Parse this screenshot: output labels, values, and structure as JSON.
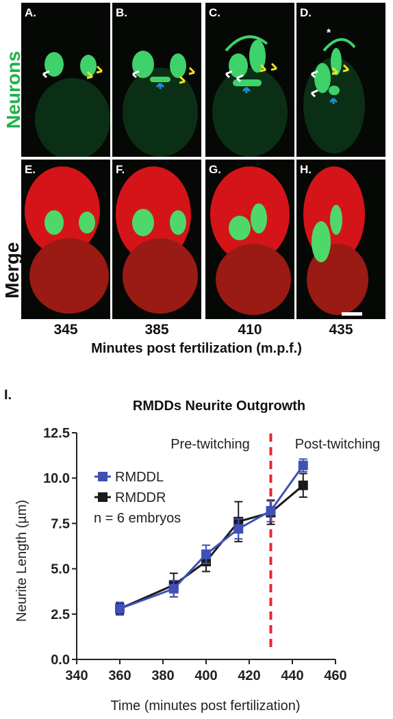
{
  "figure": {
    "row_labels": {
      "top": "Neurons",
      "bottom": "Merge"
    },
    "row_label_colors": {
      "top": "#1fb24a",
      "bottom": "#111111"
    },
    "panels_top": [
      "A.",
      "B.",
      "C.",
      "D."
    ],
    "panels_bottom": [
      "E.",
      "F.",
      "G.",
      "H."
    ],
    "timepoints": [
      "345",
      "385",
      "410",
      "435"
    ],
    "timepoint_axis_title": "Minutes post fertilization (m.p.f.)",
    "panel_I_label": "I.",
    "arrow_colors": {
      "white": "#ffffff",
      "yellow": "#f4e11a",
      "blue": "#1e90d8"
    },
    "asterisk": "*"
  },
  "chart_data": {
    "type": "line",
    "title": "RMDDs Neurite Outgrowth",
    "xlabel": "Time (minutes post fertilization)",
    "ylabel": "Neurite Length (µm)",
    "xlim": [
      340,
      460
    ],
    "ylim": [
      0,
      12.5
    ],
    "xticks": [
      "340",
      "360",
      "380",
      "400",
      "420",
      "440",
      "460"
    ],
    "yticks": [
      "0.0",
      "2.5",
      "5.0",
      "7.5",
      "10.0",
      "12.5"
    ],
    "series": [
      {
        "name": "RMDDL",
        "color": "#3f51b5",
        "marker": "square",
        "x": [
          360,
          385,
          400,
          415,
          430,
          445
        ],
        "y": [
          2.8,
          3.9,
          5.8,
          7.2,
          8.2,
          10.7
        ],
        "err": [
          0.35,
          0.45,
          0.5,
          0.55,
          0.6,
          0.35
        ]
      },
      {
        "name": "RMDDR",
        "color": "#1a1a1a",
        "marker": "square",
        "x": [
          360,
          385,
          400,
          415,
          430,
          445
        ],
        "y": [
          2.8,
          4.1,
          5.4,
          7.6,
          8.1,
          9.6
        ],
        "err": [
          0.3,
          0.65,
          0.55,
          1.1,
          0.65,
          0.65
        ]
      }
    ],
    "annotation_n": "n = 6 embryos",
    "vline": {
      "x": 430,
      "color": "#e8272a"
    },
    "region_labels": {
      "pre": "Pre-twitching",
      "post": "Post-twitching"
    },
    "legend_placement": "left",
    "grid": false
  }
}
